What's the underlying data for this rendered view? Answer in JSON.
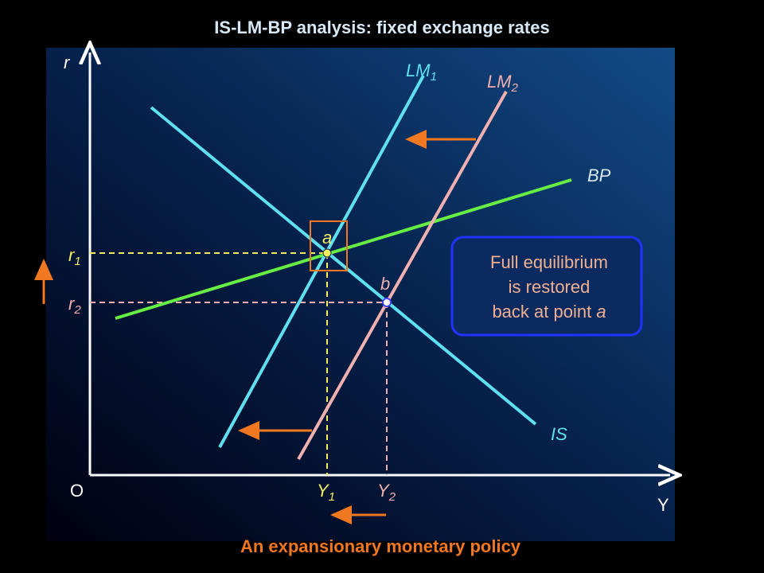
{
  "title": "IS-LM-BP analysis: fixed exchange rates",
  "axes": {
    "y_label": "r",
    "x_label": "Y",
    "origin": "O"
  },
  "curves": {
    "lm1": {
      "label": "LM",
      "sub": "1"
    },
    "lm2": {
      "label": "LM",
      "sub": "2"
    },
    "bp": {
      "label": "BP"
    },
    "is": {
      "label": "IS"
    }
  },
  "points": {
    "a": "a",
    "b": "b"
  },
  "levels": {
    "r1": {
      "label": "r",
      "sub": "1"
    },
    "r2": {
      "label": "r",
      "sub": "2"
    },
    "y1": {
      "label": "Y",
      "sub": "1"
    },
    "y2": {
      "label": "Y",
      "sub": "2"
    }
  },
  "note": {
    "lines": [
      "Full equilibrium",
      "is restored",
      "back at point "
    ],
    "emph": "a"
  },
  "caption": "An expansionary monetary policy"
}
